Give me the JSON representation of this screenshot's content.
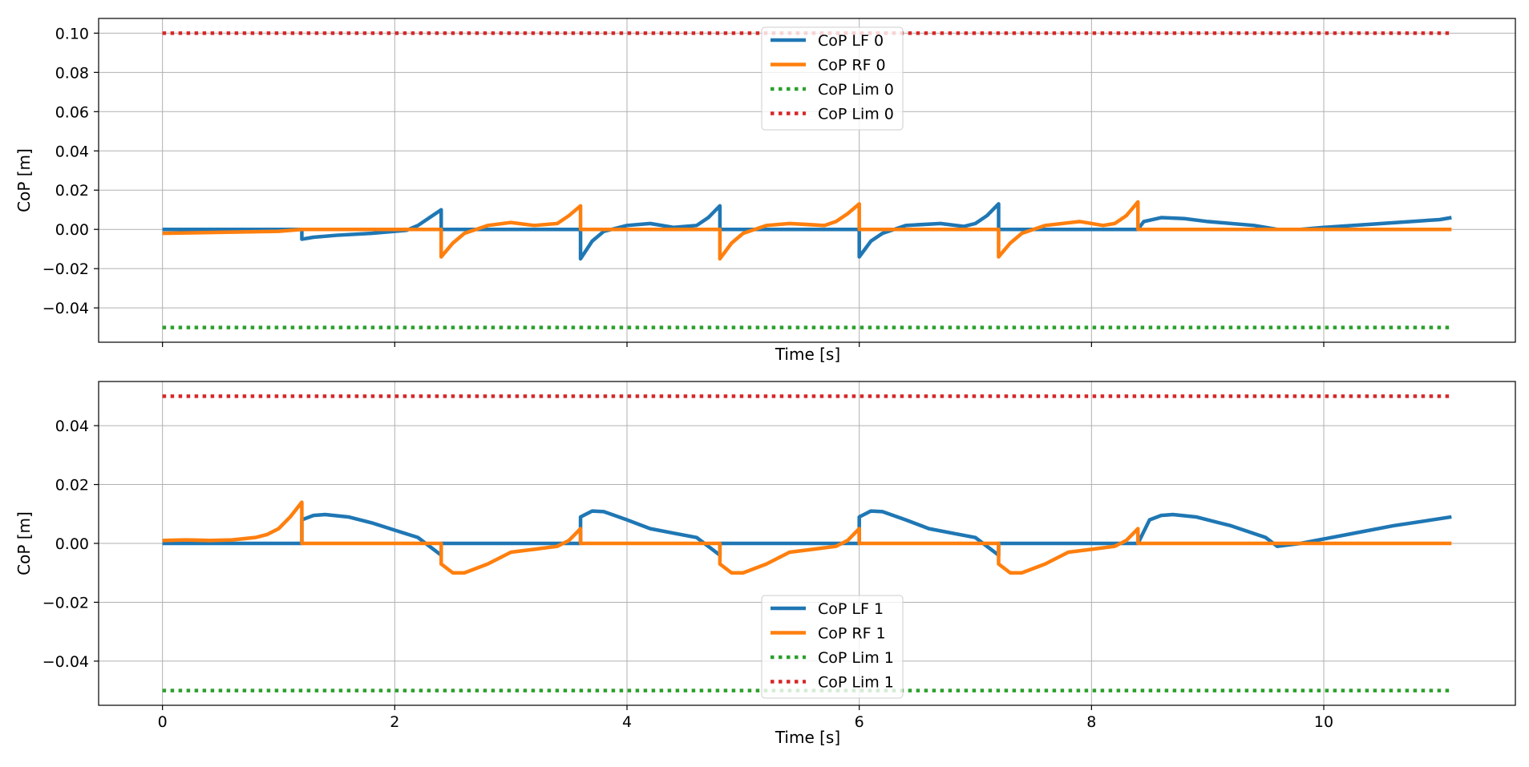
{
  "colors": {
    "lf": "#1f77b4",
    "rf": "#ff7f0e",
    "lim_low": "#2ca02c",
    "lim_high": "#d62728",
    "grid": "#b0b0b0",
    "axes": "#000000"
  },
  "chart_data": [
    {
      "type": "line",
      "xlabel": "Time [s]",
      "ylabel": "CoP [m]",
      "xlim": [
        -0.55,
        11.65
      ],
      "ylim": [
        -0.0575,
        0.1075
      ],
      "xticks": [
        0,
        2,
        4,
        6,
        8,
        10
      ],
      "xtick_labels": [
        "",
        "",
        "",
        "",
        "",
        ""
      ],
      "yticks": [
        -0.04,
        -0.02,
        0.0,
        0.02,
        0.04,
        0.06,
        0.08,
        0.1
      ],
      "ytick_labels": [
        "−0.04",
        "−0.02",
        "0.00",
        "0.02",
        "0.04",
        "0.06",
        "0.08",
        "0.10"
      ],
      "grid": true,
      "legend_position": "upper center",
      "series": [
        {
          "name": "CoP LF 0",
          "style": "solid",
          "color": "#1f77b4",
          "points": [
            [
              0,
              0
            ],
            [
              1.2,
              0
            ],
            [
              1.2,
              -0.005
            ],
            [
              1.3,
              -0.004
            ],
            [
              1.5,
              -0.003
            ],
            [
              1.8,
              -0.002
            ],
            [
              2.0,
              -0.001
            ],
            [
              2.1,
              -0.0005
            ],
            [
              2.2,
              0.002
            ],
            [
              2.3,
              0.006
            ],
            [
              2.4,
              0.01
            ],
            [
              2.4,
              0
            ],
            [
              3.6,
              0
            ],
            [
              3.6,
              -0.015
            ],
            [
              3.7,
              -0.006
            ],
            [
              3.8,
              -0.001
            ],
            [
              4.0,
              0.002
            ],
            [
              4.2,
              0.003
            ],
            [
              4.4,
              0.001
            ],
            [
              4.6,
              0.002
            ],
            [
              4.7,
              0.006
            ],
            [
              4.8,
              0.012
            ],
            [
              4.8,
              0
            ],
            [
              6.0,
              0
            ],
            [
              6.0,
              -0.014
            ],
            [
              6.1,
              -0.006
            ],
            [
              6.2,
              -0.002
            ],
            [
              6.4,
              0.002
            ],
            [
              6.7,
              0.003
            ],
            [
              6.9,
              0.0015
            ],
            [
              7.0,
              0.003
            ],
            [
              7.1,
              0.007
            ],
            [
              7.2,
              0.013
            ],
            [
              7.2,
              0
            ],
            [
              8.4,
              0
            ],
            [
              8.45,
              0.004
            ],
            [
              8.6,
              0.006
            ],
            [
              8.8,
              0.0055
            ],
            [
              9.0,
              0.004
            ],
            [
              9.4,
              0.002
            ],
            [
              9.6,
              0
            ],
            [
              9.8,
              0
            ],
            [
              10.0,
              0.001
            ],
            [
              10.5,
              0.003
            ],
            [
              11.0,
              0.005
            ],
            [
              11.1,
              0.006
            ]
          ]
        },
        {
          "name": "CoP RF 0",
          "style": "solid",
          "color": "#ff7f0e",
          "points": [
            [
              0,
              -0.002
            ],
            [
              0.5,
              -0.0015
            ],
            [
              1.0,
              -0.001
            ],
            [
              1.2,
              0
            ],
            [
              2.4,
              0
            ],
            [
              2.4,
              -0.014
            ],
            [
              2.5,
              -0.007
            ],
            [
              2.6,
              -0.002
            ],
            [
              2.8,
              0.002
            ],
            [
              3.0,
              0.0035
            ],
            [
              3.2,
              0.002
            ],
            [
              3.4,
              0.003
            ],
            [
              3.5,
              0.007
            ],
            [
              3.6,
              0.012
            ],
            [
              3.6,
              0
            ],
            [
              4.8,
              0
            ],
            [
              4.8,
              -0.015
            ],
            [
              4.9,
              -0.007
            ],
            [
              5.0,
              -0.002
            ],
            [
              5.2,
              0.002
            ],
            [
              5.4,
              0.003
            ],
            [
              5.7,
              0.002
            ],
            [
              5.8,
              0.004
            ],
            [
              5.9,
              0.008
            ],
            [
              6.0,
              0.013
            ],
            [
              6.0,
              0
            ],
            [
              7.2,
              0
            ],
            [
              7.2,
              -0.014
            ],
            [
              7.3,
              -0.007
            ],
            [
              7.4,
              -0.002
            ],
            [
              7.6,
              0.002
            ],
            [
              7.9,
              0.004
            ],
            [
              8.1,
              0.002
            ],
            [
              8.2,
              0.003
            ],
            [
              8.3,
              0.007
            ],
            [
              8.4,
              0.014
            ],
            [
              8.4,
              0
            ],
            [
              11.1,
              0
            ]
          ]
        },
        {
          "name": "CoP Lim 0",
          "style": "dotted",
          "color": "#2ca02c",
          "points": [
            [
              0,
              -0.05
            ],
            [
              11.1,
              -0.05
            ]
          ]
        },
        {
          "name": "CoP Lim 0",
          "style": "dotted",
          "color": "#d62728",
          "points": [
            [
              0,
              0.1
            ],
            [
              11.1,
              0.1
            ]
          ]
        }
      ]
    },
    {
      "type": "line",
      "xlabel": "Time [s]",
      "ylabel": "CoP [m]",
      "xlim": [
        -0.55,
        11.65
      ],
      "ylim": [
        -0.055,
        0.055
      ],
      "xticks": [
        0,
        2,
        4,
        6,
        8,
        10
      ],
      "xtick_labels": [
        "0",
        "2",
        "4",
        "6",
        "8",
        "10"
      ],
      "yticks": [
        -0.04,
        -0.02,
        0.0,
        0.02,
        0.04
      ],
      "ytick_labels": [
        "−0.04",
        "−0.02",
        "0.00",
        "0.02",
        "0.04"
      ],
      "grid": true,
      "legend_position": "lower center",
      "series": [
        {
          "name": "CoP LF 1",
          "style": "solid",
          "color": "#1f77b4",
          "points": [
            [
              0,
              0
            ],
            [
              1.2,
              0
            ],
            [
              1.2,
              0.008
            ],
            [
              1.3,
              0.0095
            ],
            [
              1.4,
              0.0098
            ],
            [
              1.6,
              0.009
            ],
            [
              1.8,
              0.007
            ],
            [
              2.0,
              0.0045
            ],
            [
              2.2,
              0.002
            ],
            [
              2.3,
              -0.001
            ],
            [
              2.4,
              -0.004
            ],
            [
              2.4,
              0
            ],
            [
              3.6,
              0
            ],
            [
              3.6,
              0.009
            ],
            [
              3.7,
              0.011
            ],
            [
              3.8,
              0.0108
            ],
            [
              4.0,
              0.008
            ],
            [
              4.2,
              0.005
            ],
            [
              4.4,
              0.0035
            ],
            [
              4.6,
              0.002
            ],
            [
              4.7,
              -0.001
            ],
            [
              4.8,
              -0.004
            ],
            [
              4.8,
              0
            ],
            [
              6.0,
              0
            ],
            [
              6.0,
              0.009
            ],
            [
              6.1,
              0.011
            ],
            [
              6.2,
              0.0108
            ],
            [
              6.4,
              0.008
            ],
            [
              6.6,
              0.005
            ],
            [
              6.8,
              0.0035
            ],
            [
              7.0,
              0.002
            ],
            [
              7.1,
              -0.001
            ],
            [
              7.2,
              -0.004
            ],
            [
              7.2,
              0
            ],
            [
              8.4,
              0
            ],
            [
              8.5,
              0.008
            ],
            [
              8.6,
              0.0095
            ],
            [
              8.7,
              0.0098
            ],
            [
              8.9,
              0.009
            ],
            [
              9.2,
              0.006
            ],
            [
              9.5,
              0.002
            ],
            [
              9.6,
              -0.001
            ],
            [
              9.8,
              0
            ],
            [
              10.2,
              0.003
            ],
            [
              10.6,
              0.006
            ],
            [
              11.1,
              0.009
            ]
          ]
        },
        {
          "name": "CoP RF 1",
          "style": "solid",
          "color": "#ff7f0e",
          "points": [
            [
              0,
              0.001
            ],
            [
              0.2,
              0.0012
            ],
            [
              0.4,
              0.001
            ],
            [
              0.6,
              0.0012
            ],
            [
              0.8,
              0.002
            ],
            [
              0.9,
              0.003
            ],
            [
              1.0,
              0.005
            ],
            [
              1.1,
              0.009
            ],
            [
              1.2,
              0.014
            ],
            [
              1.2,
              0
            ],
            [
              2.4,
              0
            ],
            [
              2.4,
              -0.007
            ],
            [
              2.5,
              -0.01
            ],
            [
              2.6,
              -0.01
            ],
            [
              2.8,
              -0.007
            ],
            [
              3.0,
              -0.003
            ],
            [
              3.2,
              -0.002
            ],
            [
              3.4,
              -0.001
            ],
            [
              3.5,
              0.001
            ],
            [
              3.6,
              0.005
            ],
            [
              3.6,
              0
            ],
            [
              4.8,
              0
            ],
            [
              4.8,
              -0.007
            ],
            [
              4.9,
              -0.01
            ],
            [
              5.0,
              -0.01
            ],
            [
              5.2,
              -0.007
            ],
            [
              5.4,
              -0.003
            ],
            [
              5.6,
              -0.002
            ],
            [
              5.8,
              -0.001
            ],
            [
              5.9,
              0.001
            ],
            [
              6.0,
              0.005
            ],
            [
              6.0,
              0
            ],
            [
              7.2,
              0
            ],
            [
              7.2,
              -0.007
            ],
            [
              7.3,
              -0.01
            ],
            [
              7.4,
              -0.01
            ],
            [
              7.6,
              -0.007
            ],
            [
              7.8,
              -0.003
            ],
            [
              8.0,
              -0.002
            ],
            [
              8.2,
              -0.001
            ],
            [
              8.3,
              0.001
            ],
            [
              8.4,
              0.005
            ],
            [
              8.4,
              0
            ],
            [
              11.1,
              0
            ]
          ]
        },
        {
          "name": "CoP Lim 1",
          "style": "dotted",
          "color": "#2ca02c",
          "points": [
            [
              0,
              -0.05
            ],
            [
              11.1,
              -0.05
            ]
          ]
        },
        {
          "name": "CoP Lim 1",
          "style": "dotted",
          "color": "#d62728",
          "points": [
            [
              0,
              0.05
            ],
            [
              11.1,
              0.05
            ]
          ]
        }
      ]
    }
  ]
}
